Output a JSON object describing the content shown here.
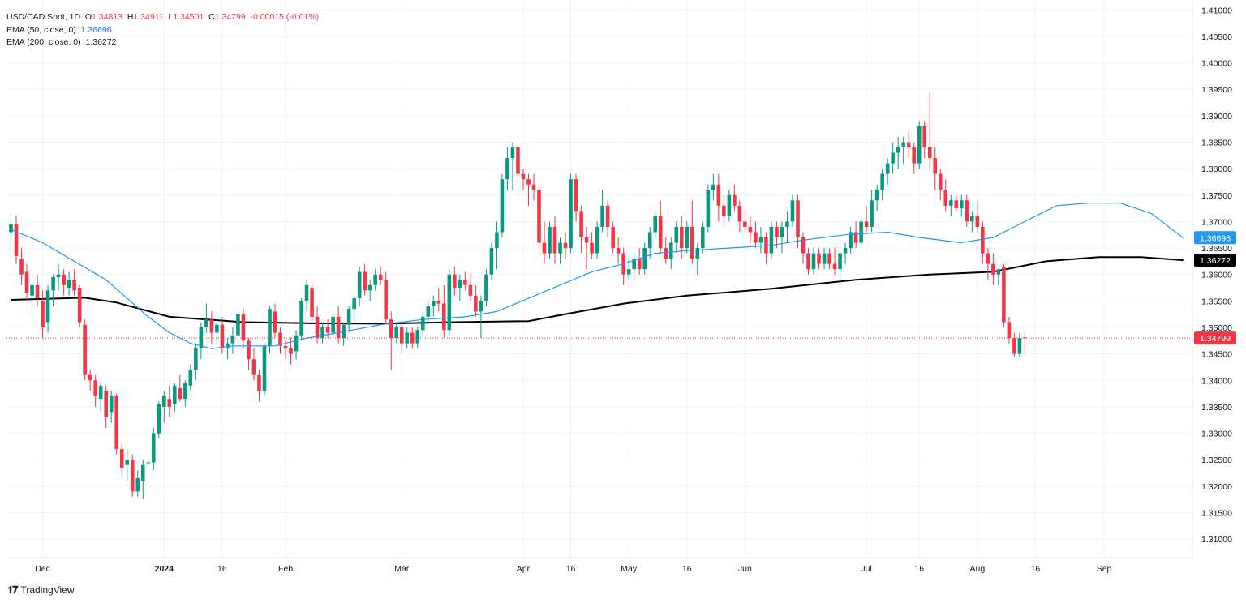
{
  "legend": {
    "symbol": "USD/CAD Spot, 1D",
    "open_label": "O",
    "open": "1.34813",
    "high_label": "H",
    "high": "1.34911",
    "low_label": "L",
    "low": "1.34501",
    "close_label": "C",
    "close": "1.34799",
    "change": "-0.00015 (-0.01%)",
    "ema50_label": "EMA (50, close, 0)",
    "ema50_value": "1.36696",
    "ema200_label": "EMA (200, close, 0)",
    "ema200_value": "1.36272"
  },
  "brand": {
    "name": "TradingView"
  },
  "colors": {
    "up": "#089981",
    "down": "#f23645",
    "ema50": "#2196f3",
    "ema200": "#000000",
    "grid": "#f0f3fa",
    "text": "#131722"
  },
  "chart_data": {
    "type": "candlestick",
    "title": "USD/CAD Spot, 1D",
    "ylim": [
      1.3065,
      1.4105
    ],
    "y_ticks": [
      "1.31000",
      "1.31500",
      "1.32000",
      "1.32500",
      "1.33000",
      "1.33500",
      "1.34000",
      "1.34500",
      "1.35000",
      "1.35500",
      "1.36000",
      "1.36500",
      "1.37000",
      "1.37500",
      "1.38000",
      "1.38500",
      "1.39000",
      "1.39500",
      "1.40000",
      "1.40500",
      "1.41000"
    ],
    "x_labels": [
      "Dec",
      "2024",
      "16",
      "Feb",
      "Mar",
      "Apr",
      "16",
      "May",
      "16",
      "Jun",
      "Jul",
      "16",
      "Aug",
      "16",
      "Sep"
    ],
    "last_price": {
      "value": 1.34799,
      "label": "1.34799"
    },
    "ema50_badge": {
      "value": 1.36696,
      "label": "1.36696"
    },
    "ema200_badge": {
      "value": 1.36272,
      "label": "1.36272"
    },
    "candles": [
      [
        1.368,
        1.371,
        1.364,
        1.3695
      ],
      [
        1.3695,
        1.3712,
        1.362,
        1.3635
      ],
      [
        1.363,
        1.365,
        1.358,
        1.36
      ],
      [
        1.3605,
        1.362,
        1.355,
        1.3565
      ],
      [
        1.356,
        1.359,
        1.352,
        1.358
      ],
      [
        1.358,
        1.36,
        1.354,
        1.3555
      ],
      [
        1.355,
        1.357,
        1.348,
        1.35
      ],
      [
        1.351,
        1.358,
        1.349,
        1.357
      ],
      [
        1.357,
        1.36,
        1.354,
        1.3595
      ],
      [
        1.3595,
        1.362,
        1.357,
        1.36
      ],
      [
        1.36,
        1.361,
        1.356,
        1.358
      ],
      [
        1.3575,
        1.3605,
        1.356,
        1.359
      ],
      [
        1.359,
        1.361,
        1.356,
        1.357
      ],
      [
        1.3575,
        1.358,
        1.35,
        1.351
      ],
      [
        1.3505,
        1.3515,
        1.34,
        1.341
      ],
      [
        1.341,
        1.342,
        1.338,
        1.34
      ],
      [
        1.34,
        1.341,
        1.335,
        1.337
      ],
      [
        1.3365,
        1.3395,
        1.334,
        1.339
      ],
      [
        1.338,
        1.339,
        1.331,
        1.333
      ],
      [
        1.334,
        1.338,
        1.332,
        1.337
      ],
      [
        1.337,
        1.3375,
        1.326,
        1.327
      ],
      [
        1.327,
        1.328,
        1.322,
        1.3235
      ],
      [
        1.324,
        1.327,
        1.321,
        1.325
      ],
      [
        1.325,
        1.326,
        1.318,
        1.319
      ],
      [
        1.319,
        1.323,
        1.318,
        1.3215
      ],
      [
        1.321,
        1.325,
        1.3175,
        1.324
      ],
      [
        1.3245,
        1.325,
        1.324,
        1.3245
      ],
      [
        1.3245,
        1.331,
        1.323,
        1.33
      ],
      [
        1.33,
        1.336,
        1.329,
        1.3355
      ],
      [
        1.335,
        1.338,
        1.332,
        1.337
      ],
      [
        1.3365,
        1.339,
        1.333,
        1.335
      ],
      [
        1.3355,
        1.3395,
        1.334,
        1.339
      ],
      [
        1.3385,
        1.341,
        1.336,
        1.3365
      ],
      [
        1.3365,
        1.34,
        1.335,
        1.3395
      ],
      [
        1.339,
        1.343,
        1.338,
        1.342
      ],
      [
        1.342,
        1.347,
        1.34,
        1.346
      ],
      [
        1.346,
        1.351,
        1.344,
        1.35
      ],
      [
        1.35,
        1.3545,
        1.349,
        1.3515
      ],
      [
        1.3515,
        1.353,
        1.347,
        1.349
      ],
      [
        1.349,
        1.352,
        1.347,
        1.3505
      ],
      [
        1.3505,
        1.352,
        1.345,
        1.346
      ],
      [
        1.346,
        1.348,
        1.344,
        1.347
      ],
      [
        1.347,
        1.35,
        1.345,
        1.3485
      ],
      [
        1.3485,
        1.353,
        1.3475,
        1.3525
      ],
      [
        1.3525,
        1.3535,
        1.346,
        1.3475
      ],
      [
        1.3475,
        1.348,
        1.342,
        1.344
      ],
      [
        1.344,
        1.346,
        1.34,
        1.341
      ],
      [
        1.341,
        1.342,
        1.336,
        1.338
      ],
      [
        1.338,
        1.347,
        1.337,
        1.3465
      ],
      [
        1.3465,
        1.354,
        1.345,
        1.3535
      ],
      [
        1.353,
        1.3545,
        1.348,
        1.349
      ],
      [
        1.349,
        1.35,
        1.345,
        1.3465
      ],
      [
        1.3465,
        1.3475,
        1.344,
        1.346
      ],
      [
        1.346,
        1.348,
        1.343,
        1.345
      ],
      [
        1.3455,
        1.3495,
        1.344,
        1.3485
      ],
      [
        1.3485,
        1.3555,
        1.3475,
        1.355
      ],
      [
        1.355,
        1.359,
        1.353,
        1.358
      ],
      [
        1.3575,
        1.3585,
        1.351,
        1.352
      ],
      [
        1.352,
        1.354,
        1.347,
        1.348
      ],
      [
        1.348,
        1.351,
        1.347,
        1.35
      ],
      [
        1.35,
        1.3515,
        1.348,
        1.349
      ],
      [
        1.349,
        1.353,
        1.348,
        1.352
      ],
      [
        1.352,
        1.354,
        1.347,
        1.348
      ],
      [
        1.348,
        1.351,
        1.3465,
        1.3505
      ],
      [
        1.3505,
        1.354,
        1.349,
        1.3535
      ],
      [
        1.3535,
        1.356,
        1.351,
        1.3555
      ],
      [
        1.3555,
        1.3615,
        1.354,
        1.3605
      ],
      [
        1.3605,
        1.362,
        1.356,
        1.357
      ],
      [
        1.357,
        1.359,
        1.355,
        1.358
      ],
      [
        1.358,
        1.361,
        1.357,
        1.36
      ],
      [
        1.36,
        1.3615,
        1.358,
        1.359
      ],
      [
        1.359,
        1.3605,
        1.3505,
        1.3515
      ],
      [
        1.3515,
        1.353,
        1.342,
        1.348
      ],
      [
        1.348,
        1.351,
        1.347,
        1.35
      ],
      [
        1.35,
        1.351,
        1.345,
        1.347
      ],
      [
        1.347,
        1.35,
        1.346,
        1.349
      ],
      [
        1.349,
        1.35,
        1.346,
        1.347
      ],
      [
        1.347,
        1.35,
        1.346,
        1.3495
      ],
      [
        1.3495,
        1.353,
        1.348,
        1.352
      ],
      [
        1.352,
        1.355,
        1.351,
        1.354
      ],
      [
        1.354,
        1.356,
        1.352,
        1.355
      ],
      [
        1.355,
        1.3575,
        1.353,
        1.3545
      ],
      [
        1.3545,
        1.358,
        1.348,
        1.3495
      ],
      [
        1.3495,
        1.361,
        1.3485,
        1.36
      ],
      [
        1.36,
        1.3615,
        1.356,
        1.3575
      ],
      [
        1.3575,
        1.36,
        1.355,
        1.359
      ],
      [
        1.359,
        1.3605,
        1.357,
        1.358
      ],
      [
        1.358,
        1.36,
        1.355,
        1.356
      ],
      [
        1.356,
        1.358,
        1.352,
        1.353
      ],
      [
        1.353,
        1.356,
        1.348,
        1.355
      ],
      [
        1.355,
        1.361,
        1.354,
        1.36
      ],
      [
        1.36,
        1.366,
        1.359,
        1.365
      ],
      [
        1.365,
        1.37,
        1.361,
        1.368
      ],
      [
        1.368,
        1.379,
        1.367,
        1.378
      ],
      [
        1.378,
        1.384,
        1.376,
        1.382
      ],
      [
        1.382,
        1.385,
        1.376,
        1.384
      ],
      [
        1.384,
        1.3845,
        1.378,
        1.379
      ],
      [
        1.379,
        1.38,
        1.376,
        1.378
      ],
      [
        1.378,
        1.379,
        1.373,
        1.377
      ],
      [
        1.377,
        1.379,
        1.374,
        1.376
      ],
      [
        1.376,
        1.377,
        1.364,
        1.366
      ],
      [
        1.366,
        1.37,
        1.362,
        1.364
      ],
      [
        1.364,
        1.37,
        1.363,
        1.369
      ],
      [
        1.369,
        1.371,
        1.362,
        1.364
      ],
      [
        1.364,
        1.367,
        1.362,
        1.366
      ],
      [
        1.366,
        1.368,
        1.363,
        1.365
      ],
      [
        1.365,
        1.379,
        1.364,
        1.378
      ],
      [
        1.378,
        1.379,
        1.37,
        1.372
      ],
      [
        1.372,
        1.373,
        1.364,
        1.367
      ],
      [
        1.367,
        1.369,
        1.361,
        1.366
      ],
      [
        1.366,
        1.368,
        1.363,
        1.364
      ],
      [
        1.364,
        1.37,
        1.363,
        1.369
      ],
      [
        1.369,
        1.376,
        1.368,
        1.373
      ],
      [
        1.373,
        1.374,
        1.367,
        1.369
      ],
      [
        1.369,
        1.37,
        1.364,
        1.365
      ],
      [
        1.365,
        1.367,
        1.362,
        1.364
      ],
      [
        1.364,
        1.365,
        1.358,
        1.36
      ],
      [
        1.36,
        1.363,
        1.359,
        1.361
      ],
      [
        1.361,
        1.364,
        1.359,
        1.363
      ],
      [
        1.363,
        1.365,
        1.36,
        1.361
      ],
      [
        1.361,
        1.366,
        1.36,
        1.365
      ],
      [
        1.365,
        1.369,
        1.363,
        1.368
      ],
      [
        1.368,
        1.372,
        1.367,
        1.371
      ],
      [
        1.371,
        1.374,
        1.364,
        1.365
      ],
      [
        1.365,
        1.367,
        1.362,
        1.363
      ],
      [
        1.363,
        1.367,
        1.361,
        1.366
      ],
      [
        1.366,
        1.37,
        1.364,
        1.369
      ],
      [
        1.369,
        1.371,
        1.363,
        1.365
      ],
      [
        1.365,
        1.37,
        1.364,
        1.369
      ],
      [
        1.369,
        1.374,
        1.362,
        1.363
      ],
      [
        1.363,
        1.366,
        1.36,
        1.365
      ],
      [
        1.365,
        1.37,
        1.364,
        1.369
      ],
      [
        1.369,
        1.377,
        1.368,
        1.376
      ],
      [
        1.376,
        1.379,
        1.374,
        1.377
      ],
      [
        1.377,
        1.379,
        1.37,
        1.373
      ],
      [
        1.373,
        1.375,
        1.369,
        1.371
      ],
      [
        1.371,
        1.376,
        1.37,
        1.375
      ],
      [
        1.375,
        1.377,
        1.372,
        1.373
      ],
      [
        1.373,
        1.374,
        1.368,
        1.37
      ],
      [
        1.37,
        1.372,
        1.368,
        1.369
      ],
      [
        1.369,
        1.371,
        1.366,
        1.368
      ],
      [
        1.368,
        1.37,
        1.365,
        1.366
      ],
      [
        1.366,
        1.369,
        1.364,
        1.367
      ],
      [
        1.367,
        1.368,
        1.362,
        1.364
      ],
      [
        1.364,
        1.37,
        1.363,
        1.369
      ],
      [
        1.369,
        1.37,
        1.365,
        1.367
      ],
      [
        1.367,
        1.37,
        1.364,
        1.369
      ],
      [
        1.369,
        1.372,
        1.366,
        1.37
      ],
      [
        1.37,
        1.375,
        1.369,
        1.374
      ],
      [
        1.374,
        1.375,
        1.365,
        1.367
      ],
      [
        1.367,
        1.368,
        1.362,
        1.364
      ],
      [
        1.364,
        1.365,
        1.36,
        1.361
      ],
      [
        1.361,
        1.365,
        1.36,
        1.364
      ],
      [
        1.364,
        1.365,
        1.361,
        1.362
      ],
      [
        1.362,
        1.365,
        1.361,
        1.364
      ],
      [
        1.364,
        1.365,
        1.361,
        1.362
      ],
      [
        1.362,
        1.365,
        1.36,
        1.361
      ],
      [
        1.361,
        1.365,
        1.359,
        1.364
      ],
      [
        1.364,
        1.366,
        1.362,
        1.365
      ],
      [
        1.365,
        1.369,
        1.364,
        1.368
      ],
      [
        1.368,
        1.37,
        1.365,
        1.366
      ],
      [
        1.366,
        1.371,
        1.365,
        1.37
      ],
      [
        1.37,
        1.373,
        1.368,
        1.369
      ],
      [
        1.369,
        1.376,
        1.368,
        1.374
      ],
      [
        1.374,
        1.377,
        1.372,
        1.376
      ],
      [
        1.376,
        1.38,
        1.374,
        1.379
      ],
      [
        1.379,
        1.382,
        1.377,
        1.381
      ],
      [
        1.381,
        1.385,
        1.379,
        1.383
      ],
      [
        1.383,
        1.386,
        1.38,
        1.384
      ],
      [
        1.384,
        1.386,
        1.381,
        1.385
      ],
      [
        1.385,
        1.387,
        1.382,
        1.384
      ],
      [
        1.384,
        1.385,
        1.379,
        1.381
      ],
      [
        1.381,
        1.389,
        1.38,
        1.388
      ],
      [
        1.388,
        1.389,
        1.382,
        1.384
      ],
      [
        1.384,
        1.3946,
        1.38,
        1.382
      ],
      [
        1.382,
        1.384,
        1.376,
        1.379
      ],
      [
        1.379,
        1.38,
        1.374,
        1.376
      ],
      [
        1.376,
        1.378,
        1.372,
        1.373
      ],
      [
        1.373,
        1.375,
        1.371,
        1.374
      ],
      [
        1.374,
        1.375,
        1.372,
        1.3725
      ],
      [
        1.3725,
        1.375,
        1.371,
        1.374
      ],
      [
        1.374,
        1.375,
        1.369,
        1.37
      ],
      [
        1.37,
        1.372,
        1.368,
        1.371
      ],
      [
        1.371,
        1.374,
        1.368,
        1.369
      ],
      [
        1.369,
        1.37,
        1.362,
        1.364
      ],
      [
        1.364,
        1.365,
        1.359,
        1.362
      ],
      [
        1.362,
        1.364,
        1.358,
        1.36
      ],
      [
        1.36,
        1.361,
        1.358,
        1.361
      ],
      [
        1.3615,
        1.362,
        1.35,
        1.351
      ],
      [
        1.351,
        1.352,
        1.347,
        1.348
      ],
      [
        1.348,
        1.349,
        1.3445,
        1.345
      ],
      [
        1.345,
        1.349,
        1.3445,
        1.348
      ],
      [
        1.34813,
        1.34911,
        1.34501,
        1.34799
      ]
    ],
    "ema50_path": [
      [
        0,
        1.3685
      ],
      [
        6,
        1.366
      ],
      [
        12,
        1.3625
      ],
      [
        18,
        1.359
      ],
      [
        22,
        1.3555
      ],
      [
        26,
        1.352
      ],
      [
        30,
        1.349
      ],
      [
        34,
        1.347
      ],
      [
        38,
        1.346
      ],
      [
        42,
        1.3465
      ],
      [
        50,
        1.3465
      ],
      [
        56,
        1.348
      ],
      [
        62,
        1.349
      ],
      [
        70,
        1.3505
      ],
      [
        78,
        1.3515
      ],
      [
        86,
        1.352
      ],
      [
        92,
        1.353
      ],
      [
        98,
        1.3555
      ],
      [
        104,
        1.358
      ],
      [
        110,
        1.3605
      ],
      [
        116,
        1.362
      ],
      [
        122,
        1.364
      ],
      [
        128,
        1.3645
      ],
      [
        136,
        1.365
      ],
      [
        144,
        1.3655
      ],
      [
        150,
        1.3665
      ],
      [
        158,
        1.3675
      ],
      [
        166,
        1.368
      ],
      [
        172,
        1.367
      ],
      [
        180,
        1.366
      ],
      [
        186,
        1.367
      ],
      [
        192,
        1.37
      ],
      [
        198,
        1.373
      ],
      [
        204,
        1.3735
      ],
      [
        210,
        1.3735
      ],
      [
        216,
        1.3715
      ],
      [
        222,
        1.3669
      ]
    ],
    "ema200_path": [
      [
        0,
        1.3552
      ],
      [
        14,
        1.3556
      ],
      [
        20,
        1.3547
      ],
      [
        30,
        1.352
      ],
      [
        44,
        1.351
      ],
      [
        56,
        1.3508
      ],
      [
        70,
        1.3507
      ],
      [
        84,
        1.351
      ],
      [
        98,
        1.3512
      ],
      [
        106,
        1.3527
      ],
      [
        116,
        1.3545
      ],
      [
        128,
        1.356
      ],
      [
        144,
        1.3573
      ],
      [
        160,
        1.359
      ],
      [
        174,
        1.36
      ],
      [
        186,
        1.3605
      ],
      [
        196,
        1.3625
      ],
      [
        206,
        1.3633
      ],
      [
        214,
        1.3633
      ],
      [
        222,
        1.3627
      ]
    ],
    "x_label_index": [
      6,
      29,
      40,
      52,
      74,
      97,
      106,
      117,
      128,
      139,
      162,
      172,
      183,
      194,
      207
    ]
  }
}
